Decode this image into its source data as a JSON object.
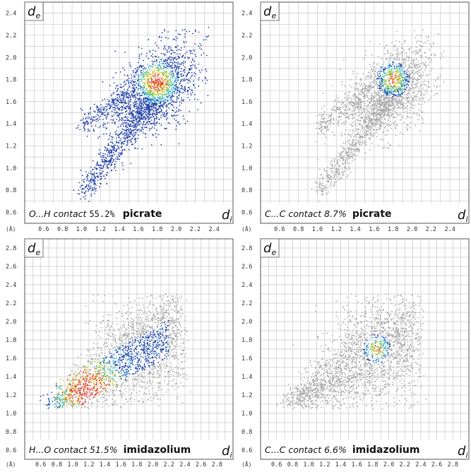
{
  "axis_symbols": {
    "de": "d",
    "de_sub": "e",
    "di": "d",
    "di_sub": "i",
    "unit": "(Å)"
  },
  "colors": {
    "grid": "#c8c8c8",
    "frame": "#555555",
    "grey_points": "#a8a8a8",
    "blue": "#1f3fa8",
    "cyan": "#3fb8d8",
    "green": "#7fc84a",
    "yellow": "#e8d83a",
    "red": "#e0402a"
  },
  "chart_data": [
    {
      "type": "scatter",
      "title": "",
      "contact": "O...H contact",
      "percent": "55.2%",
      "species": "picrate",
      "xlabel": "d_i",
      "ylabel": "d_e",
      "xlim": [
        0.4,
        2.6
      ],
      "ylim": [
        0.5,
        2.5
      ],
      "x_ticks": [
        "0.6",
        "0.8",
        "1.0",
        "1.2",
        "1.4",
        "1.6",
        "1.8",
        "2.0",
        "2.2",
        "2.4"
      ],
      "y_ticks": [
        "0.6",
        "0.8",
        "1.0",
        "1.2",
        "1.4",
        "1.6",
        "1.8",
        "2.0",
        "2.2",
        "2.4"
      ],
      "grid": true,
      "highlight": "full",
      "hotspot": [
        1.8,
        1.78
      ]
    },
    {
      "type": "scatter",
      "title": "",
      "contact": "C...C contact 8.7%",
      "percent": "",
      "species": "picrate",
      "xlabel": "d_i",
      "ylabel": "d_e",
      "xlim": [
        0.4,
        2.6
      ],
      "ylim": [
        0.5,
        2.5
      ],
      "x_ticks": [
        "0.6",
        "0.8",
        "1.0",
        "1.2",
        "1.4",
        "1.6",
        "1.8",
        "2.0",
        "2.2",
        "2.4"
      ],
      "y_ticks": [
        "0.6",
        "0.8",
        "1.0",
        "1.2",
        "1.4",
        "1.6",
        "1.8",
        "2.0",
        "2.2",
        "2.4"
      ],
      "grid": true,
      "highlight": "patch",
      "patch_center": [
        1.8,
        1.8
      ]
    },
    {
      "type": "scatter",
      "title": "",
      "contact": "H...O contact 51.5%",
      "percent": "",
      "species": "imidazolium",
      "xlabel": "d_i",
      "ylabel": "d_e",
      "xlim": [
        0.4,
        3.0
      ],
      "ylim": [
        0.5,
        2.9
      ],
      "x_ticks": [
        "0.6",
        "0.8",
        "1.0",
        "1.2",
        "1.4",
        "1.6",
        "1.8",
        "2.0",
        "2.2",
        "2.4",
        "2.6",
        "2.8"
      ],
      "y_ticks": [
        "0.6",
        "0.8",
        "1.0",
        "1.2",
        "1.4",
        "1.6",
        "1.8",
        "2.0",
        "2.2",
        "2.4",
        "2.6",
        "2.8"
      ],
      "grid": true,
      "highlight": "band",
      "hotspot": [
        1.2,
        1.25
      ]
    },
    {
      "type": "scatter",
      "title": "",
      "contact": "C...C contact 6.6%",
      "percent": "",
      "species": "imidazolium",
      "xlabel": "d_i",
      "ylabel": "d_e",
      "xlim": [
        0.4,
        3.0
      ],
      "ylim": [
        0.5,
        2.9
      ],
      "x_ticks": [
        "0.6",
        "0.8",
        "1.0",
        "1.2",
        "1.4",
        "1.6",
        "1.8",
        "2.0",
        "2.2",
        "2.4",
        "2.6",
        "2.8"
      ],
      "y_ticks": [
        "0.6",
        "0.8",
        "1.0",
        "1.2",
        "1.4",
        "1.6",
        "1.8",
        "2.0",
        "2.2",
        "2.4",
        "2.6",
        "2.8"
      ],
      "grid": true,
      "highlight": "patch",
      "patch_center": [
        1.85,
        1.7
      ]
    }
  ]
}
